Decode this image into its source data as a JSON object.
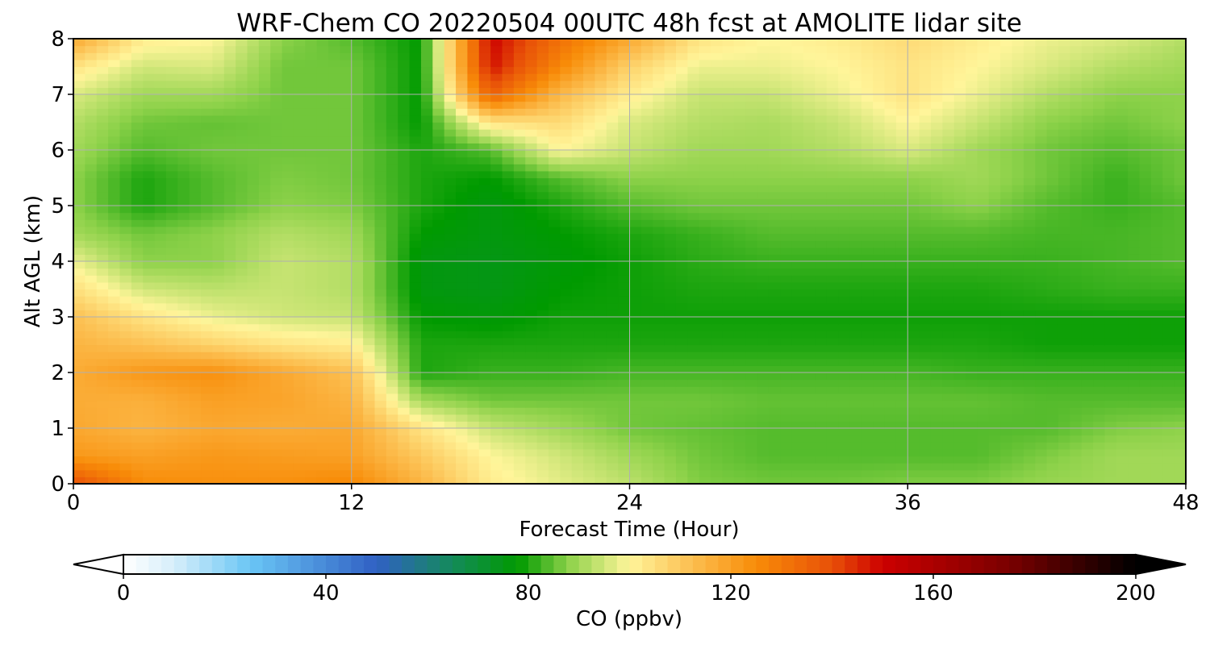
{
  "chart_data": {
    "type": "heatmap",
    "title": "WRF-Chem CO  20220504 00UTC 48h fcst at AMOLITE lidar site",
    "xlabel": "Forecast Time (Hour)",
    "ylabel": "Alt AGL (km)",
    "xlim": [
      0,
      48
    ],
    "ylim": [
      0,
      8
    ],
    "xticks": [
      "0",
      "12",
      "24",
      "36",
      "48"
    ],
    "yticks": [
      "0",
      "1",
      "2",
      "3",
      "4",
      "5",
      "6",
      "7",
      "8"
    ],
    "grid": true,
    "x_hours": [
      0,
      3,
      6,
      9,
      12,
      15,
      18,
      21,
      24,
      27,
      30,
      33,
      36,
      39,
      42,
      45,
      48
    ],
    "y_km": [
      0,
      0.5,
      1,
      1.5,
      2,
      2.5,
      3,
      3.5,
      4,
      4.5,
      5,
      5.5,
      6,
      6.5,
      7,
      7.5,
      8
    ],
    "co_ppbv": [
      [
        140,
        125,
        124,
        124,
        126,
        115,
        102,
        97,
        93,
        87,
        86,
        86,
        87,
        87,
        89,
        90,
        90
      ],
      [
        122,
        120,
        122,
        121,
        120,
        110,
        100,
        95,
        90,
        86,
        84,
        84,
        84,
        84,
        87,
        90,
        90
      ],
      [
        118,
        115,
        118,
        117,
        118,
        104,
        94,
        90,
        86,
        85,
        84,
        84,
        84,
        84,
        84,
        87,
        88
      ],
      [
        117,
        116,
        120,
        119,
        115,
        90,
        86,
        86,
        86,
        86,
        85,
        85,
        85,
        85,
        84,
        84,
        84
      ],
      [
        117,
        122,
        124,
        118,
        112,
        80,
        82,
        82,
        83,
        83,
        83,
        83,
        83,
        82,
        82,
        82,
        82
      ],
      [
        115,
        112,
        108,
        104,
        102,
        80,
        80,
        80,
        80,
        80,
        80,
        80,
        80,
        80,
        79,
        79,
        79
      ],
      [
        112,
        104,
        98,
        95,
        94,
        78,
        77,
        79,
        79,
        79,
        79,
        79,
        79,
        79,
        79,
        79,
        79
      ],
      [
        105,
        95,
        93,
        94,
        92,
        76,
        75,
        78,
        79,
        80,
        80,
        80,
        80,
        80,
        81,
        82,
        82
      ],
      [
        98,
        88,
        88,
        94,
        92,
        76,
        75,
        77,
        79,
        81,
        82,
        82,
        82,
        82,
        82,
        83,
        84
      ],
      [
        90,
        86,
        88,
        92,
        90,
        78,
        76,
        78,
        80,
        82,
        84,
        84,
        84,
        84,
        83,
        83,
        84
      ],
      [
        88,
        80,
        84,
        88,
        87,
        80,
        76,
        80,
        84,
        86,
        86,
        86,
        86,
        88,
        84,
        82,
        84
      ],
      [
        88,
        80,
        84,
        87,
        86,
        80,
        78,
        84,
        88,
        88,
        88,
        88,
        88,
        90,
        86,
        82,
        86
      ],
      [
        90,
        84,
        86,
        86,
        86,
        80,
        84,
        100,
        94,
        90,
        90,
        92,
        96,
        90,
        86,
        84,
        86
      ],
      [
        92,
        86,
        85,
        86,
        86,
        78,
        104,
        106,
        96,
        92,
        91,
        94,
        100,
        94,
        88,
        86,
        88
      ],
      [
        96,
        90,
        90,
        86,
        86,
        78,
        136,
        114,
        102,
        94,
        94,
        98,
        104,
        98,
        92,
        88,
        88
      ],
      [
        104,
        95,
        96,
        86,
        86,
        78,
        148,
        126,
        108,
        98,
        98,
        100,
        104,
        100,
        96,
        92,
        90
      ],
      [
        118,
        102,
        100,
        88,
        84,
        78,
        150,
        132,
        118,
        104,
        100,
        102,
        106,
        102,
        98,
        96,
        92
      ]
    ],
    "colorbar": {
      "label": "CO  (ppbv)",
      "min": 0,
      "max": 200,
      "ticks": [
        "0",
        "40",
        "80",
        "120",
        "160",
        "200"
      ],
      "extend": "both",
      "stops": [
        {
          "value": 0,
          "color": "#ffffff"
        },
        {
          "value": 10,
          "color": "#d6eefa"
        },
        {
          "value": 25,
          "color": "#6ac6f5"
        },
        {
          "value": 50,
          "color": "#3060c4"
        },
        {
          "value": 65,
          "color": "#148a5a"
        },
        {
          "value": 78,
          "color": "#009a00"
        },
        {
          "value": 88,
          "color": "#8ed24a"
        },
        {
          "value": 100,
          "color": "#fff59a"
        },
        {
          "value": 112,
          "color": "#fcc052"
        },
        {
          "value": 125,
          "color": "#f88c08"
        },
        {
          "value": 140,
          "color": "#e85008"
        },
        {
          "value": 150,
          "color": "#cc0000"
        },
        {
          "value": 175,
          "color": "#7a0000"
        },
        {
          "value": 200,
          "color": "#000000"
        }
      ]
    }
  }
}
